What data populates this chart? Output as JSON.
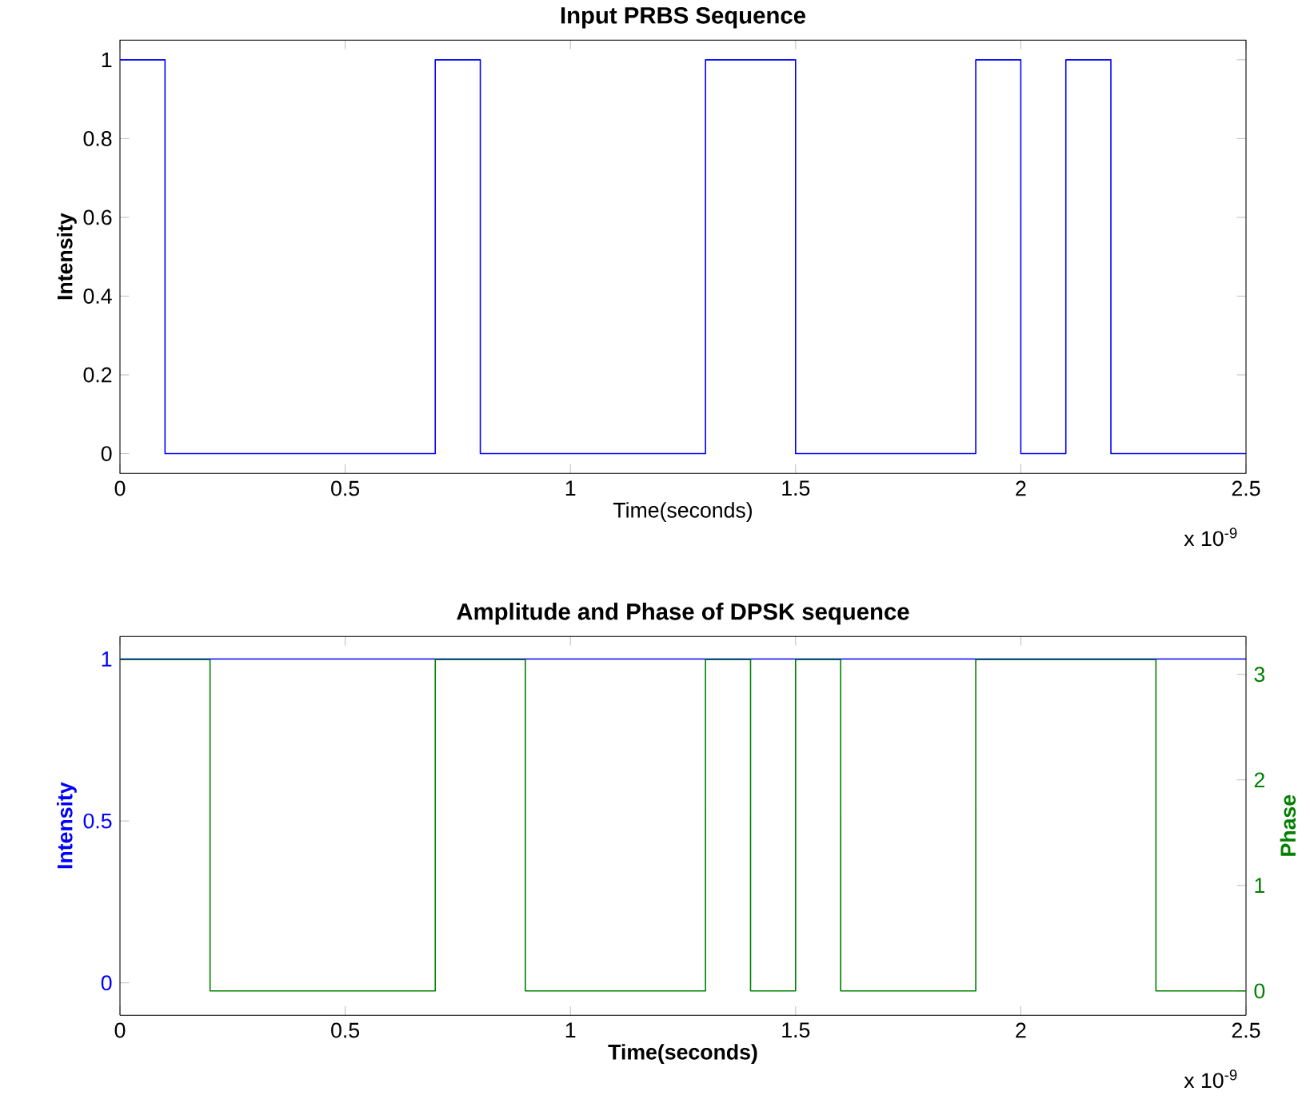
{
  "chart_data": [
    {
      "type": "step",
      "title": "Input PRBS Sequence",
      "xlabel": "Time(seconds)",
      "ylabel": "Intensity",
      "annotations": [
        "x 10$^{-9}$"
      ],
      "series": [
        {
          "color": "#0000ff",
          "x": [
            0,
            0.1,
            0.7,
            0.8,
            1.3,
            1.5,
            1.9,
            2.0,
            2.1,
            2.2,
            2.5
          ],
          "values": [
            1,
            0,
            1,
            0,
            1,
            0,
            1,
            0,
            1,
            0,
            0
          ]
        }
      ],
      "xlim": [
        0,
        2.5
      ],
      "xticks": [
        0,
        0.5,
        1,
        1.5,
        2,
        2.5
      ],
      "ylim": [
        -0.05,
        1.05
      ],
      "yticks": [
        0,
        0.2,
        0.4,
        0.6,
        0.8,
        1
      ]
    },
    {
      "type": "step",
      "title": "Amplitude and Phase of DPSK sequence",
      "xlabel": "Time(seconds)",
      "ylabel": "Intensity",
      "y2label": "Phase",
      "annotations": [
        "x 10$^{-9}$"
      ],
      "series": [
        {
          "type": "line",
          "color": "#0000ff",
          "x": [
            0,
            2.5
          ],
          "values": [
            1,
            1
          ]
        },
        {
          "color": "#008000",
          "axis": "y2",
          "x": [
            0,
            0.2,
            0.7,
            0.9,
            1.3,
            1.4,
            1.5,
            1.6,
            1.9,
            2.3,
            2.5
          ],
          "values": [
            3.14,
            0,
            3.14,
            0,
            3.14,
            0,
            3.14,
            0,
            3.14,
            0,
            0
          ]
        }
      ],
      "xlim": [
        0,
        2.5
      ],
      "xticks": [
        0,
        0.5,
        1,
        1.5,
        2,
        2.5
      ],
      "ylim": [
        -0.1,
        1.07
      ],
      "yticks": [
        0,
        0.5,
        1
      ],
      "y2lim": [
        -0.23,
        3.36
      ],
      "y2ticks": [
        0,
        1,
        2,
        3
      ]
    }
  ]
}
